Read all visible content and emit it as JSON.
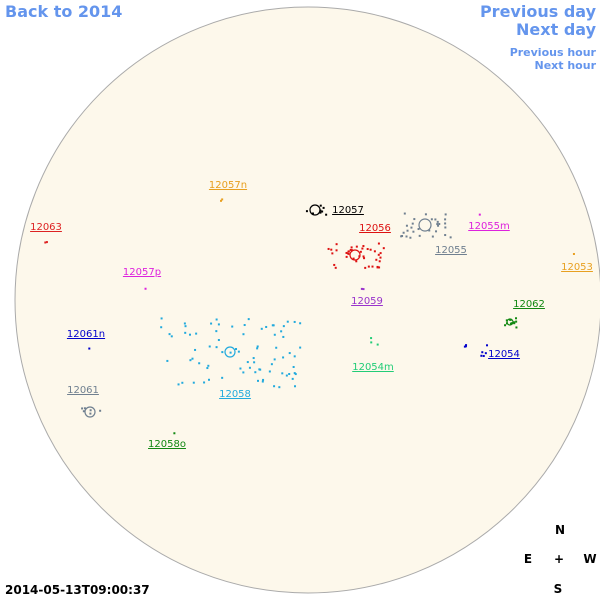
{
  "nav": {
    "back": "Back to 2014",
    "previous_day": "Previous day",
    "next_day": "Next day",
    "previous_hour": "Previous hour",
    "next_hour": "Next hour"
  },
  "timestamp": "2014-05-13T09:00:37",
  "compass": {
    "north": "N",
    "east": "E",
    "center": "+",
    "west": "W",
    "south": "S"
  },
  "regions": [
    {
      "label": "12057n",
      "color": "#e8a020"
    },
    {
      "label": "12063",
      "color": "#dd2222"
    },
    {
      "label": "12057",
      "color": "#000000"
    },
    {
      "label": "12056",
      "color": "#dd1111"
    },
    {
      "label": "12055",
      "color": "#708090"
    },
    {
      "label": "12055m",
      "color": "#dd22dd"
    },
    {
      "label": "12053",
      "color": "#e8a020"
    },
    {
      "label": "12057p",
      "color": "#dd22dd"
    },
    {
      "label": "12059",
      "color": "#9933cc"
    },
    {
      "label": "12062",
      "color": "#118811"
    },
    {
      "label": "12061n",
      "color": "#0000cc"
    },
    {
      "label": "12054",
      "color": "#0000cc"
    },
    {
      "label": "12054m",
      "color": "#22cc77"
    },
    {
      "label": "12058",
      "color": "#22aadd"
    },
    {
      "label": "12061",
      "color": "#708090"
    },
    {
      "label": "12058o",
      "color": "#118811"
    }
  ]
}
